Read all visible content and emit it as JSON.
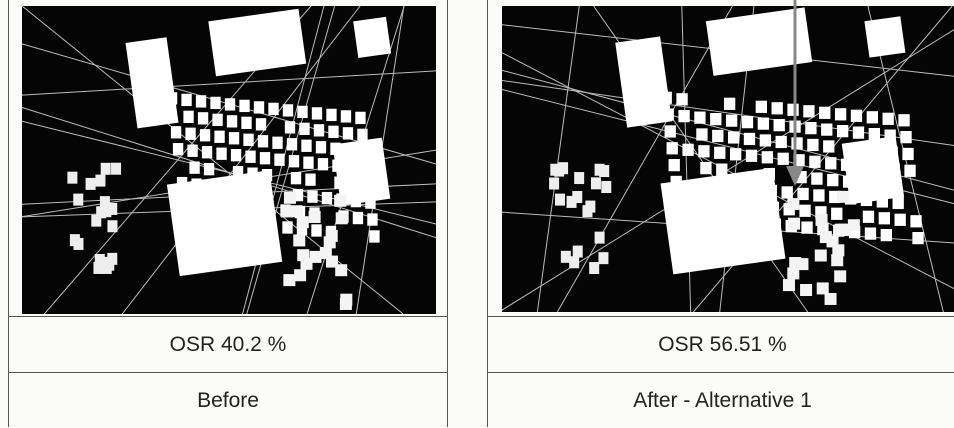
{
  "panels": [
    {
      "metric": "OSR 40.2 %",
      "label": "Before"
    },
    {
      "metric": "OSR 56.51 %",
      "label": "After - Alternative 1"
    }
  ]
}
